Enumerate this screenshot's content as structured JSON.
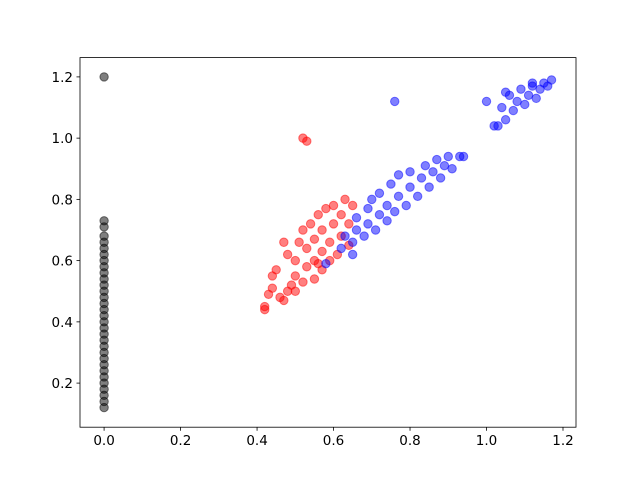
{
  "chart_data": {
    "type": "scatter",
    "xlim": [
      -0.063,
      1.234
    ],
    "ylim": [
      0.056,
      1.263
    ],
    "xticks": [
      {
        "value": 0,
        "label": "0.0"
      },
      0.2,
      0.4,
      0.6,
      0.8,
      {
        "value": 1,
        "label": "1.0"
      },
      1.2
    ],
    "yticks": [
      0.2,
      0.4,
      0.6,
      0.8,
      {
        "value": 1,
        "label": "1.0"
      },
      1.2
    ],
    "alpha": 0.5,
    "series": [
      {
        "color": "#000000",
        "x": [
          0,
          0,
          0,
          0,
          0,
          0,
          0,
          0,
          0,
          0,
          0,
          0,
          0,
          0,
          0,
          0,
          0,
          0,
          0,
          0,
          0,
          0,
          0,
          0,
          0,
          0,
          0,
          0,
          0,
          0,
          0,
          0
        ],
        "values": [
          0.12,
          0.14,
          0.16,
          0.18,
          0.2,
          0.22,
          0.24,
          0.26,
          0.28,
          0.3,
          0.32,
          0.34,
          0.36,
          0.38,
          0.4,
          0.42,
          0.44,
          0.46,
          0.48,
          0.5,
          0.52,
          0.54,
          0.56,
          0.58,
          0.6,
          0.62,
          0.64,
          0.66,
          0.68,
          0.71,
          0.73,
          1.2
        ]
      },
      {
        "color": "#ff0000",
        "x": [
          0.42,
          0.42,
          0.43,
          0.44,
          0.44,
          0.45,
          0.46,
          0.47,
          0.48,
          0.49,
          0.5,
          0.5,
          0.5,
          0.51,
          0.52,
          0.52,
          0.53,
          0.53,
          0.54,
          0.55,
          0.55,
          0.55,
          0.56,
          0.57,
          0.57,
          0.57,
          0.58,
          0.59,
          0.59,
          0.6,
          0.6,
          0.61,
          0.62,
          0.62,
          0.63,
          0.64,
          0.64,
          0.65,
          0.47,
          0.48,
          0.52,
          0.53,
          0.56
        ],
        "values": [
          0.44,
          0.45,
          0.49,
          0.51,
          0.55,
          0.57,
          0.48,
          0.47,
          0.5,
          0.52,
          0.5,
          0.55,
          0.6,
          0.66,
          0.7,
          0.53,
          0.58,
          0.64,
          0.72,
          0.54,
          0.6,
          0.67,
          0.75,
          0.57,
          0.63,
          0.7,
          0.77,
          0.6,
          0.66,
          0.72,
          0.78,
          0.62,
          0.68,
          0.75,
          0.8,
          0.65,
          0.72,
          0.78,
          0.66,
          0.62,
          1.0,
          0.99,
          0.59
        ]
      },
      {
        "color": "#0000ff",
        "x": [
          0.58,
          0.62,
          0.63,
          0.65,
          0.66,
          0.66,
          0.68,
          0.69,
          0.69,
          0.7,
          0.71,
          0.72,
          0.72,
          0.74,
          0.74,
          0.75,
          0.76,
          0.77,
          0.77,
          0.79,
          0.8,
          0.8,
          0.82,
          0.83,
          0.84,
          0.85,
          0.86,
          0.87,
          0.88,
          0.89,
          0.9,
          0.91,
          0.93,
          0.94,
          0.76,
          1.0,
          1.02,
          1.03,
          1.04,
          1.05,
          1.06,
          1.07,
          1.08,
          1.09,
          1.1,
          1.11,
          1.12,
          1.13,
          1.14,
          1.15,
          1.16,
          1.17,
          1.05,
          1.12,
          0.65
        ],
        "values": [
          0.59,
          0.64,
          0.68,
          0.66,
          0.7,
          0.74,
          0.68,
          0.72,
          0.77,
          0.8,
          0.7,
          0.75,
          0.82,
          0.73,
          0.78,
          0.85,
          0.76,
          0.81,
          0.88,
          0.78,
          0.84,
          0.89,
          0.81,
          0.87,
          0.91,
          0.84,
          0.89,
          0.93,
          0.87,
          0.91,
          0.94,
          0.9,
          0.94,
          0.94,
          1.12,
          1.12,
          1.04,
          1.04,
          1.1,
          1.06,
          1.14,
          1.09,
          1.12,
          1.16,
          1.11,
          1.14,
          1.17,
          1.13,
          1.16,
          1.18,
          1.17,
          1.19,
          1.15,
          1.18,
          0.62
        ]
      }
    ]
  }
}
